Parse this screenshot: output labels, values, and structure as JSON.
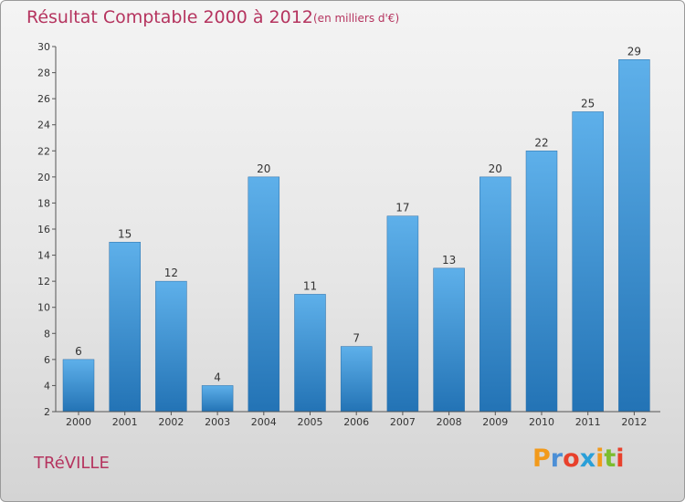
{
  "header": {
    "title": "Résultat Comptable 2000 à 2012",
    "subtitle": "(en milliers d'€)"
  },
  "footer": {
    "commune": "TRéVILLE",
    "logo_letters": [
      "P",
      "r",
      "o",
      "x",
      "i",
      "t",
      "i"
    ],
    "logo_colors": [
      "#f29a1b",
      "#4c8fd6",
      "#e8412c",
      "#2a9fd8",
      "#f29a1b",
      "#7cbd2f",
      "#e8412c"
    ]
  },
  "colors": {
    "title": "#b5345f",
    "bar_top": "#5eb0ea",
    "bar_bottom": "#2373b5",
    "axis": "#555555"
  },
  "chart_data": {
    "type": "bar",
    "title": "Résultat Comptable 2000 à 2012",
    "subtitle": "(en milliers d'€)",
    "xlabel": "",
    "ylabel": "",
    "categories": [
      "2000",
      "2001",
      "2002",
      "2003",
      "2004",
      "2005",
      "2006",
      "2007",
      "2008",
      "2009",
      "2010",
      "2011",
      "2012"
    ],
    "values": [
      6,
      15,
      12,
      4,
      20,
      11,
      7,
      17,
      13,
      20,
      22,
      25,
      29
    ],
    "ylim": [
      2,
      30
    ],
    "yticks": [
      2,
      4,
      6,
      8,
      10,
      12,
      14,
      16,
      18,
      20,
      22,
      24,
      26,
      28,
      30
    ],
    "grid": false
  }
}
